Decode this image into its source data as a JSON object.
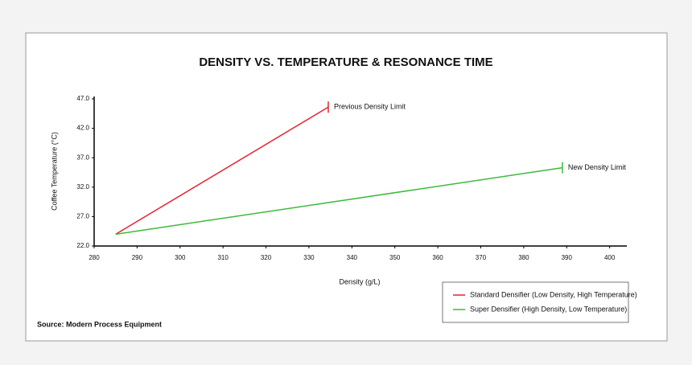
{
  "chart_data": {
    "type": "line",
    "title": "DENSITY VS. TEMPERATURE & RESONANCE TIME",
    "x_label": "Density (g/L)",
    "y_label": "Coffee Temperature (°C)",
    "source": "Source: Modern Process Equipment",
    "xlim": [
      280,
      404
    ],
    "xticks": [
      280,
      290,
      300,
      310,
      320,
      330,
      340,
      350,
      360,
      370,
      380,
      390,
      400
    ],
    "ylim": [
      22,
      47
    ],
    "yticks": [
      {
        "value": 22,
        "label": "22.0"
      },
      {
        "value": 27,
        "label": "27.0"
      },
      {
        "value": 32,
        "label": "32.0"
      },
      {
        "value": 37,
        "label": "37.0"
      },
      {
        "value": 42,
        "label": "42.0"
      },
      {
        "value": 47,
        "label": "47.0"
      }
    ],
    "series": [
      {
        "name": "Standard Densifier (Low Density, High Temperature)",
        "color": "#e8232e",
        "x": [
          285,
          334.5
        ],
        "values": [
          24,
          45.6
        ]
      },
      {
        "name": "Super Densifier (High Density, Low Temperature)",
        "color": "#3cba3c",
        "x": [
          285,
          389
        ],
        "values": [
          24,
          35.3
        ]
      }
    ],
    "annotations": [
      "Previous Density Limit",
      "New Density Limit"
    ],
    "grid": false
  }
}
